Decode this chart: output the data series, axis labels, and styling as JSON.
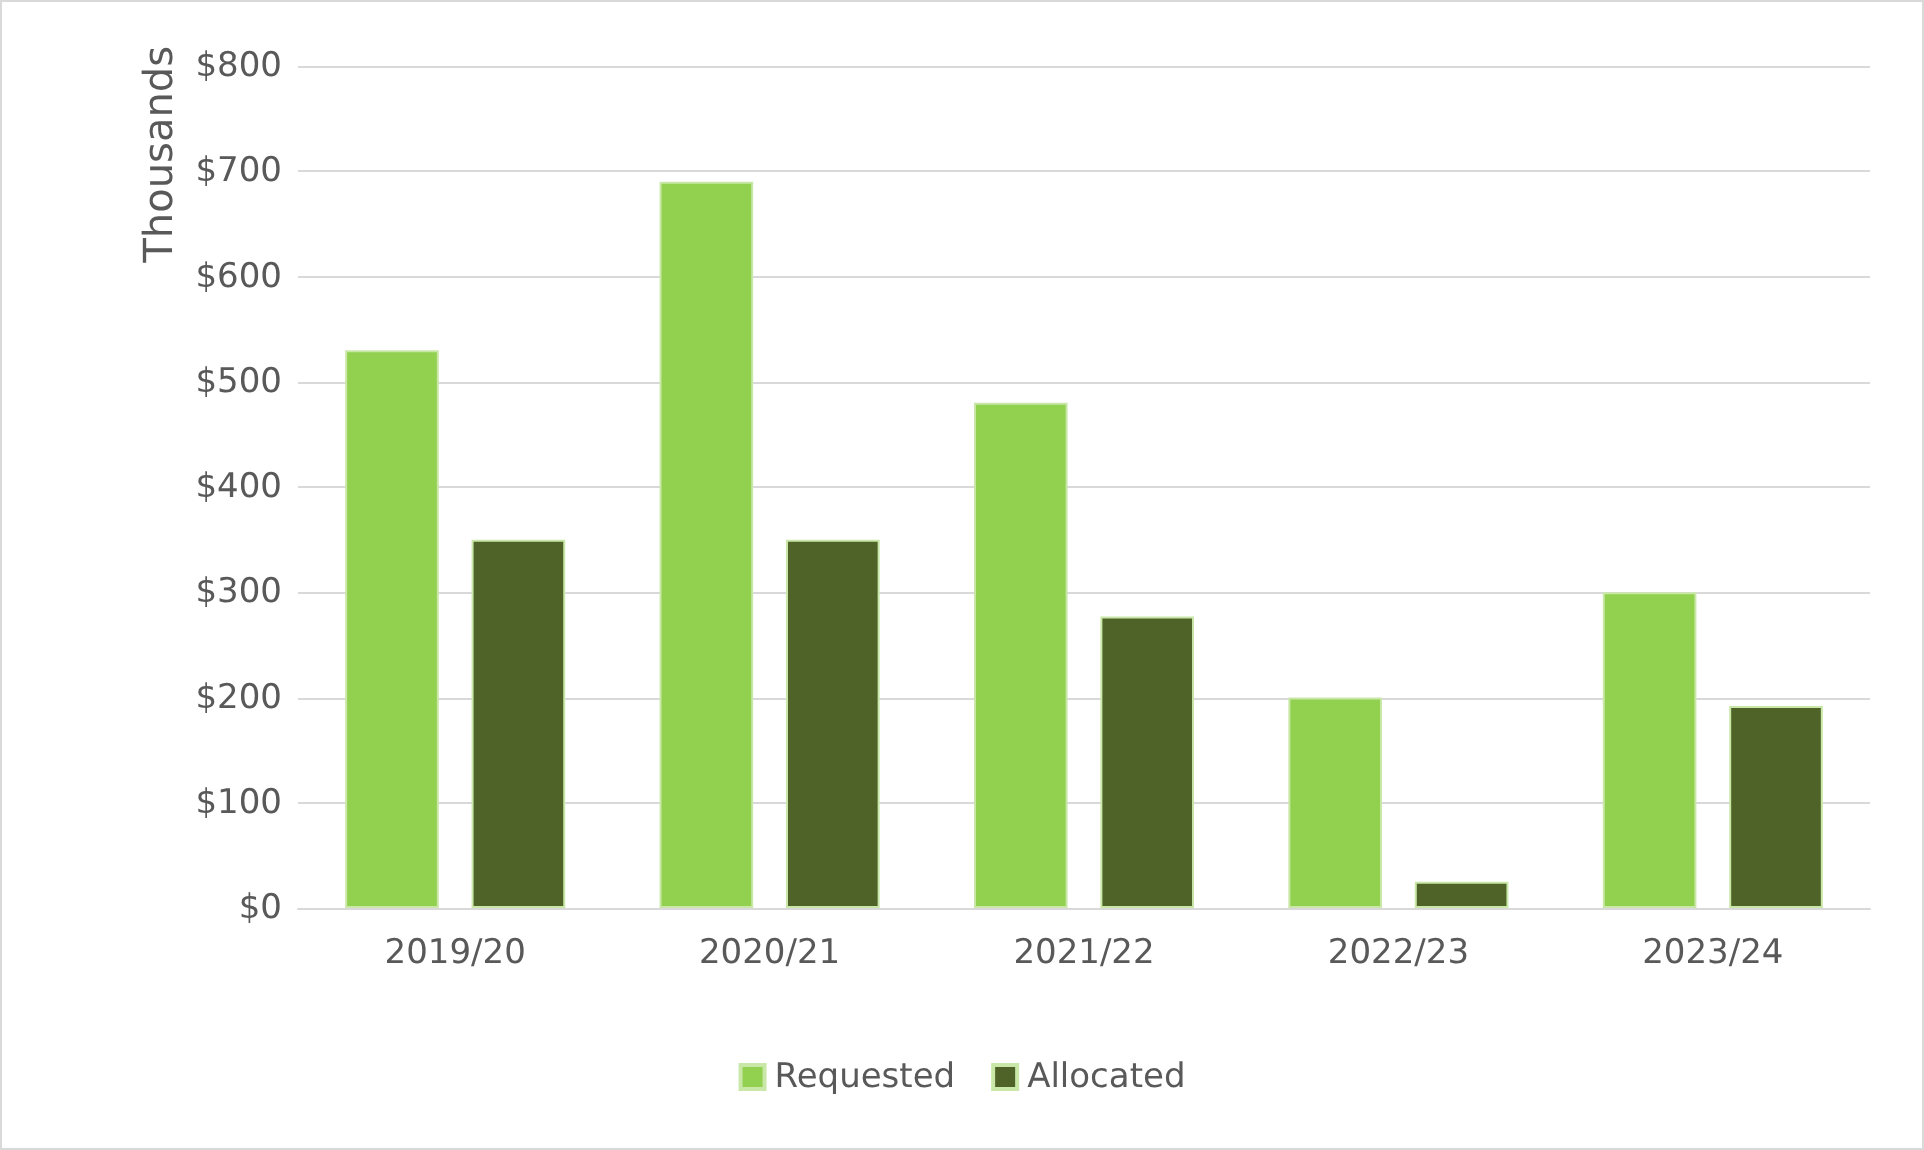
{
  "chart_data": {
    "type": "bar",
    "ylabel": "Thousands",
    "categories": [
      "2019/20",
      "2020/21",
      "2021/22",
      "2022/23",
      "2023/24"
    ],
    "series": [
      {
        "name": "Requested",
        "color": "#92d050",
        "values": [
          530,
          690,
          480,
          200,
          300
        ]
      },
      {
        "name": "Allocated",
        "color": "#4f6228",
        "values": [
          350,
          350,
          277,
          25,
          192
        ]
      }
    ],
    "ylim": [
      0,
      800
    ],
    "yticks": [
      {
        "value": 0,
        "label": "$0"
      },
      {
        "value": 100,
        "label": "$100"
      },
      {
        "value": 200,
        "label": "$200"
      },
      {
        "value": 300,
        "label": "$300"
      },
      {
        "value": 400,
        "label": "$400"
      },
      {
        "value": 500,
        "label": "$500"
      },
      {
        "value": 600,
        "label": "$600"
      },
      {
        "value": 700,
        "label": "$700"
      },
      {
        "value": 800,
        "label": "$800"
      }
    ],
    "grid": "y",
    "legend": "bottom"
  }
}
